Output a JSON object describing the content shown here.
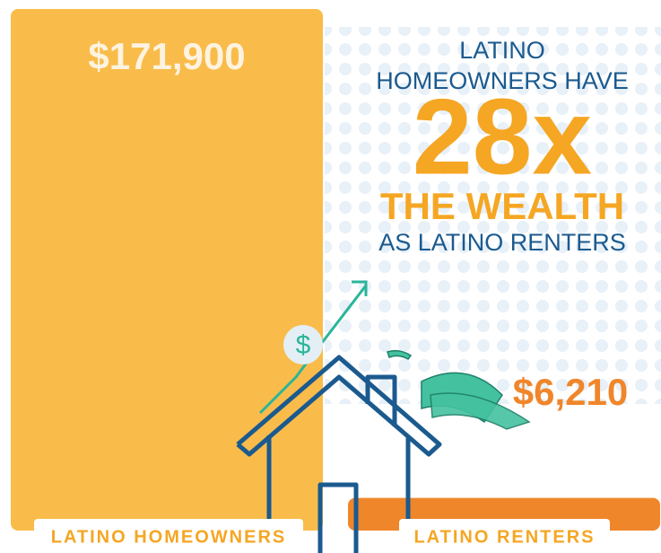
{
  "chart_data": {
    "type": "bar",
    "categories": [
      "LATINO HOMEOWNERS",
      "LATINO RENTERS"
    ],
    "values": [
      171900,
      6210
    ],
    "value_labels": [
      "$171,900",
      "$6,210"
    ],
    "colors": [
      "#f9bc4a",
      "#f0862a"
    ],
    "annotations": [
      "LATINO",
      "HOMEOWNERS HAVE",
      "28x",
      "THE WEALTH",
      "AS LATINO RENTERS"
    ]
  }
}
